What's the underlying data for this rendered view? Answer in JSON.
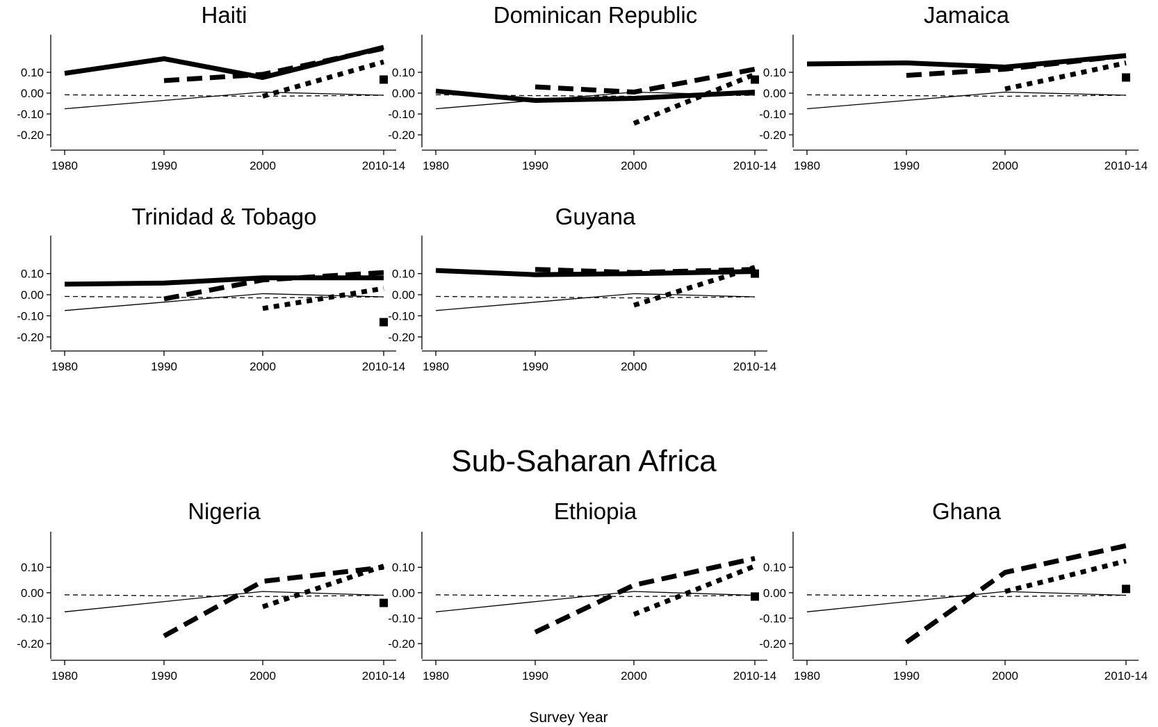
{
  "figure": {
    "section_title": "Sub-Saharan Africa",
    "xlabel": "Survey Year"
  },
  "chart_data": [
    {
      "type": "line",
      "title": "Haiti",
      "categories": [
        "1980",
        "1990",
        "2000",
        "2010-14"
      ],
      "yticks": [
        "0.10",
        "0.00",
        "-0.10",
        "-0.20"
      ],
      "ylim": [
        -0.26,
        0.28
      ],
      "series": [
        {
          "style": "thin-solid",
          "values": [
            -0.075,
            -0.035,
            0.005,
            -0.01
          ]
        },
        {
          "style": "thin-dashed",
          "values": [
            -0.008,
            -0.012,
            -0.015,
            -0.01
          ]
        },
        {
          "style": "thick-solid",
          "values": [
            0.095,
            0.165,
            0.075,
            0.22
          ]
        },
        {
          "style": "thick-dashed",
          "values": [
            null,
            0.06,
            0.09,
            0.215
          ]
        },
        {
          "style": "thick-dotted",
          "values": [
            null,
            null,
            -0.015,
            0.15
          ]
        },
        {
          "style": "square-marker",
          "values": [
            null,
            null,
            null,
            0.065
          ]
        }
      ]
    },
    {
      "type": "line",
      "title": "Dominican Republic",
      "categories": [
        "1980",
        "1990",
        "2000",
        "2010-14"
      ],
      "yticks": [
        "0.10",
        "0.00",
        "-0.10",
        "-0.20"
      ],
      "ylim": [
        -0.26,
        0.28
      ],
      "series": [
        {
          "style": "thin-solid",
          "values": [
            -0.075,
            -0.035,
            0.005,
            -0.01
          ]
        },
        {
          "style": "thin-dashed",
          "values": [
            -0.008,
            -0.012,
            -0.015,
            -0.01
          ]
        },
        {
          "style": "thick-solid",
          "values": [
            0.01,
            -0.035,
            -0.025,
            0.005
          ]
        },
        {
          "style": "thick-dashed",
          "values": [
            null,
            0.03,
            0.005,
            0.115
          ]
        },
        {
          "style": "thick-dotted",
          "values": [
            null,
            null,
            -0.145,
            0.09
          ]
        },
        {
          "style": "square-marker",
          "values": [
            null,
            null,
            null,
            0.065
          ]
        }
      ]
    },
    {
      "type": "line",
      "title": "Jamaica",
      "categories": [
        "1980",
        "1990",
        "2000",
        "2010-14"
      ],
      "yticks": [
        "0.10",
        "0.00",
        "-0.10",
        "-0.20"
      ],
      "ylim": [
        -0.26,
        0.28
      ],
      "series": [
        {
          "style": "thin-solid",
          "values": [
            -0.075,
            -0.035,
            0.005,
            -0.01
          ]
        },
        {
          "style": "thin-dashed",
          "values": [
            -0.008,
            -0.012,
            -0.015,
            -0.01
          ]
        },
        {
          "style": "thick-solid",
          "values": [
            0.14,
            0.145,
            0.125,
            0.18
          ]
        },
        {
          "style": "thick-dashed",
          "values": [
            null,
            0.085,
            0.115,
            0.18
          ]
        },
        {
          "style": "thick-dotted",
          "values": [
            null,
            null,
            0.02,
            0.145
          ]
        },
        {
          "style": "square-marker",
          "values": [
            null,
            null,
            null,
            0.075
          ]
        }
      ]
    },
    {
      "type": "line",
      "title": "Trinidad & Tobago",
      "categories": [
        "1980",
        "1990",
        "2000",
        "2010-14"
      ],
      "yticks": [
        "0.10",
        "0.00",
        "-0.10",
        "-0.20"
      ],
      "ylim": [
        -0.26,
        0.28
      ],
      "series": [
        {
          "style": "thin-solid",
          "values": [
            -0.075,
            -0.035,
            0.005,
            -0.01
          ]
        },
        {
          "style": "thin-dashed",
          "values": [
            -0.008,
            -0.012,
            -0.015,
            -0.01
          ]
        },
        {
          "style": "thick-solid",
          "values": [
            0.05,
            0.055,
            0.08,
            0.08
          ]
        },
        {
          "style": "thick-dashed",
          "values": [
            null,
            -0.02,
            0.07,
            0.105
          ]
        },
        {
          "style": "thick-dotted",
          "values": [
            null,
            null,
            -0.065,
            0.03
          ]
        },
        {
          "style": "square-marker",
          "values": [
            null,
            null,
            null,
            -0.13
          ]
        }
      ]
    },
    {
      "type": "line",
      "title": "Guyana",
      "categories": [
        "1980",
        "1990",
        "2000",
        "2010-14"
      ],
      "yticks": [
        "0.10",
        "0.00",
        "-0.10",
        "-0.20"
      ],
      "ylim": [
        -0.26,
        0.28
      ],
      "series": [
        {
          "style": "thin-solid",
          "values": [
            -0.075,
            -0.035,
            0.005,
            -0.01
          ]
        },
        {
          "style": "thin-dashed",
          "values": [
            -0.008,
            -0.012,
            -0.015,
            -0.01
          ]
        },
        {
          "style": "thick-solid",
          "values": [
            0.115,
            0.095,
            0.1,
            0.11
          ]
        },
        {
          "style": "thick-dashed",
          "values": [
            null,
            0.12,
            0.105,
            0.12
          ]
        },
        {
          "style": "thick-dotted",
          "values": [
            null,
            null,
            -0.05,
            0.13
          ]
        },
        {
          "style": "square-marker",
          "values": [
            null,
            null,
            null,
            0.1
          ]
        }
      ]
    },
    {
      "type": "line",
      "title": "Nigeria",
      "categories": [
        "1980",
        "1990",
        "2000",
        "2010-14"
      ],
      "yticks": [
        "0.10",
        "0.00",
        "-0.10",
        "-0.20"
      ],
      "ylim": [
        -0.26,
        0.24
      ],
      "series": [
        {
          "style": "thin-solid",
          "values": [
            -0.075,
            -0.035,
            0.005,
            -0.01
          ]
        },
        {
          "style": "thin-dashed",
          "values": [
            -0.008,
            -0.012,
            -0.015,
            -0.01
          ]
        },
        {
          "style": "thick-dashed",
          "values": [
            null,
            -0.17,
            0.045,
            0.1
          ]
        },
        {
          "style": "thick-dotted",
          "values": [
            null,
            null,
            -0.055,
            0.105
          ]
        },
        {
          "style": "square-marker",
          "values": [
            null,
            null,
            null,
            -0.04
          ]
        }
      ]
    },
    {
      "type": "line",
      "title": "Ethiopia",
      "categories": [
        "1980",
        "1990",
        "2000",
        "2010-14"
      ],
      "yticks": [
        "0.10",
        "0.00",
        "-0.10",
        "-0.20"
      ],
      "ylim": [
        -0.26,
        0.24
      ],
      "series": [
        {
          "style": "thin-solid",
          "values": [
            -0.075,
            -0.035,
            0.005,
            -0.01
          ]
        },
        {
          "style": "thin-dashed",
          "values": [
            -0.008,
            -0.012,
            -0.015,
            -0.01
          ]
        },
        {
          "style": "thick-dashed",
          "values": [
            null,
            -0.155,
            0.03,
            0.135
          ]
        },
        {
          "style": "thick-dotted",
          "values": [
            null,
            null,
            -0.085,
            0.105
          ]
        },
        {
          "style": "square-marker",
          "values": [
            null,
            null,
            null,
            -0.015
          ]
        }
      ]
    },
    {
      "type": "line",
      "title": "Ghana",
      "categories": [
        "1980",
        "1990",
        "2000",
        "2010-14"
      ],
      "yticks": [
        "0.10",
        "0.00",
        "-0.10",
        "-0.20"
      ],
      "ylim": [
        -0.26,
        0.24
      ],
      "series": [
        {
          "style": "thin-solid",
          "values": [
            -0.075,
            -0.035,
            0.005,
            -0.01
          ]
        },
        {
          "style": "thin-dashed",
          "values": [
            -0.008,
            -0.012,
            -0.015,
            -0.01
          ]
        },
        {
          "style": "thick-dashed",
          "values": [
            null,
            -0.195,
            0.08,
            0.185
          ]
        },
        {
          "style": "thick-dotted",
          "values": [
            null,
            null,
            0.005,
            0.125
          ]
        },
        {
          "style": "square-marker",
          "values": [
            null,
            null,
            null,
            0.015
          ]
        }
      ]
    }
  ]
}
